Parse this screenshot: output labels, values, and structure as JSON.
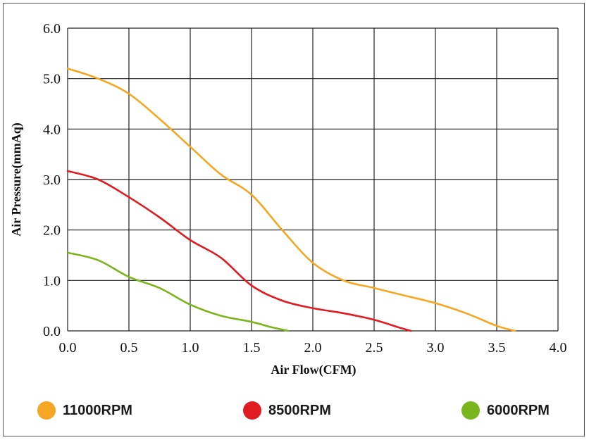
{
  "chart_data": {
    "type": "line",
    "title": "",
    "xlabel": "Air Flow(CFM)",
    "ylabel": "Air Pressure(mmAq)",
    "xlim": [
      0,
      4.0
    ],
    "ylim": [
      0,
      6.0
    ],
    "x_ticks": [
      "0.0",
      "0.5",
      "1.0",
      "1.5",
      "2.0",
      "2.5",
      "3.0",
      "3.5",
      "4.0"
    ],
    "y_ticks": [
      "0.0",
      "1.0",
      "2.0",
      "3.0",
      "4.0",
      "5.0",
      "6.0"
    ],
    "grid": true,
    "legend_position": "bottom",
    "series": [
      {
        "name": "11000RPM",
        "color": "#f5a623",
        "points": [
          [
            0,
            5.2
          ],
          [
            0.25,
            5.0
          ],
          [
            0.5,
            4.7
          ],
          [
            0.75,
            4.2
          ],
          [
            1.0,
            3.65
          ],
          [
            1.25,
            3.1
          ],
          [
            1.5,
            2.7
          ],
          [
            1.75,
            2.0
          ],
          [
            2.0,
            1.35
          ],
          [
            2.25,
            1.0
          ],
          [
            2.5,
            0.85
          ],
          [
            2.75,
            0.7
          ],
          [
            3.0,
            0.55
          ],
          [
            3.25,
            0.35
          ],
          [
            3.5,
            0.1
          ],
          [
            3.65,
            0.0
          ]
        ]
      },
      {
        "name": "8500RPM",
        "color": "#e01b22",
        "points": [
          [
            0,
            3.17
          ],
          [
            0.25,
            3.0
          ],
          [
            0.5,
            2.65
          ],
          [
            0.75,
            2.25
          ],
          [
            1.0,
            1.8
          ],
          [
            1.25,
            1.45
          ],
          [
            1.5,
            0.9
          ],
          [
            1.75,
            0.6
          ],
          [
            2.0,
            0.45
          ],
          [
            2.25,
            0.35
          ],
          [
            2.5,
            0.22
          ],
          [
            2.7,
            0.07
          ],
          [
            2.8,
            0.0
          ]
        ]
      },
      {
        "name": "6000RPM",
        "color": "#7ab51d",
        "points": [
          [
            0,
            1.55
          ],
          [
            0.25,
            1.4
          ],
          [
            0.5,
            1.07
          ],
          [
            0.75,
            0.85
          ],
          [
            1.0,
            0.52
          ],
          [
            1.25,
            0.3
          ],
          [
            1.5,
            0.18
          ],
          [
            1.65,
            0.08
          ],
          [
            1.8,
            0.0
          ]
        ]
      }
    ]
  }
}
